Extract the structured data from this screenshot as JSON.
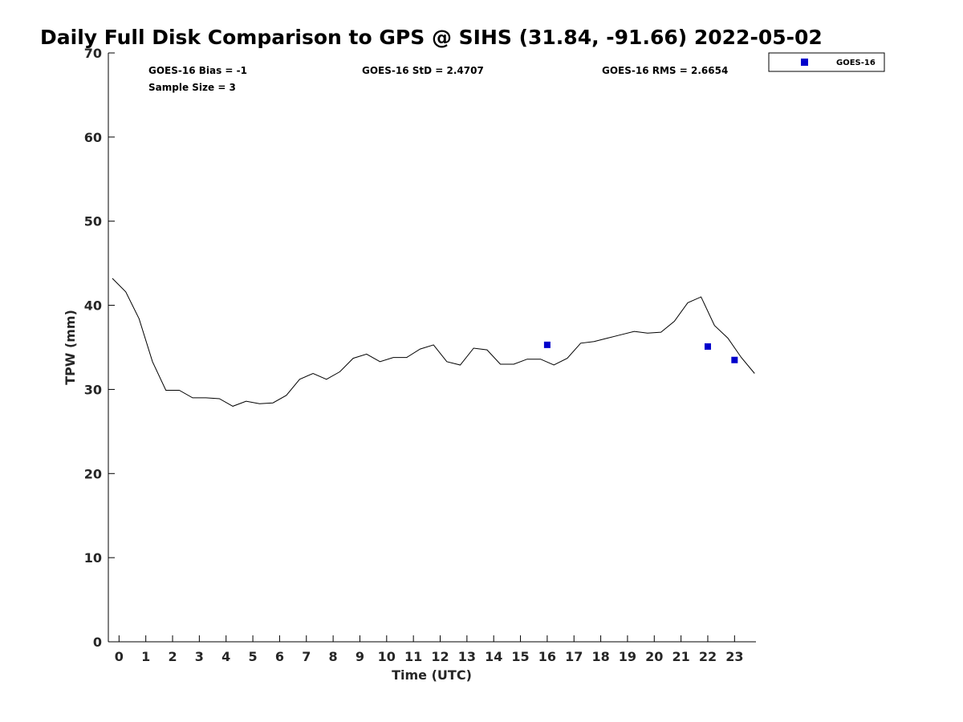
{
  "chart_data": {
    "type": "line",
    "title": "Daily Full Disk Comparison to GPS @ SIHS (31.84, -91.66) 2022-05-02",
    "xlabel": "Time (UTC)",
    "ylabel": "TPW (mm)",
    "xlim": [
      -0.4,
      23.8
    ],
    "ylim": [
      0,
      70
    ],
    "x_ticks": [
      "0",
      "1",
      "2",
      "3",
      "4",
      "5",
      "6",
      "7",
      "8",
      "9",
      "10",
      "11",
      "12",
      "13",
      "14",
      "15",
      "16",
      "17",
      "18",
      "19",
      "20",
      "21",
      "22",
      "23"
    ],
    "y_ticks": [
      "0",
      "10",
      "20",
      "30",
      "40",
      "50",
      "60",
      "70"
    ],
    "grid": false,
    "legend_position": "outside-top-right",
    "stats": {
      "bias": "GOES-16 Bias = -1",
      "sample_size": "Sample Size = 3",
      "std": "GOES-16 StD = 2.4707",
      "rms": "GOES-16 RMS = 2.6654"
    },
    "series": [
      {
        "style": "line",
        "color": "#000000",
        "x": [
          -0.25,
          0.25,
          0.75,
          1.25,
          1.75,
          2.25,
          2.75,
          3.25,
          3.75,
          4.25,
          4.75,
          5.25,
          5.75,
          6.25,
          6.75,
          7.25,
          7.75,
          8.25,
          8.75,
          9.25,
          9.75,
          10.25,
          10.75,
          11.25,
          11.75,
          12.25,
          12.75,
          13.25,
          13.75,
          14.25,
          14.75,
          15.25,
          15.75,
          16.25,
          16.75,
          17.25,
          17.75,
          18.25,
          18.75,
          19.25,
          19.75,
          20.25,
          20.75,
          21.25,
          21.75,
          22.25,
          22.75,
          23.25,
          23.75
        ],
        "y": [
          43.2,
          41.6,
          38.4,
          33.3,
          29.9,
          29.9,
          29.0,
          29.0,
          28.9,
          28.0,
          28.6,
          28.3,
          28.4,
          29.3,
          31.2,
          31.9,
          31.2,
          32.1,
          33.7,
          34.2,
          33.3,
          33.8,
          33.8,
          34.8,
          35.3,
          33.3,
          32.9,
          34.9,
          34.7,
          33.0,
          33.0,
          33.6,
          33.6,
          32.9,
          33.7,
          35.5,
          35.7,
          36.1,
          36.5,
          36.9,
          36.7,
          36.8,
          38.1,
          40.3,
          41.0,
          37.6,
          36.1,
          33.8,
          31.9
        ]
      },
      {
        "name": "GOES-16",
        "style": "scatter",
        "marker": "square",
        "color": "#0000cc",
        "x": [
          16,
          22,
          23
        ],
        "y": [
          35.3,
          35.1,
          33.5
        ]
      }
    ]
  }
}
